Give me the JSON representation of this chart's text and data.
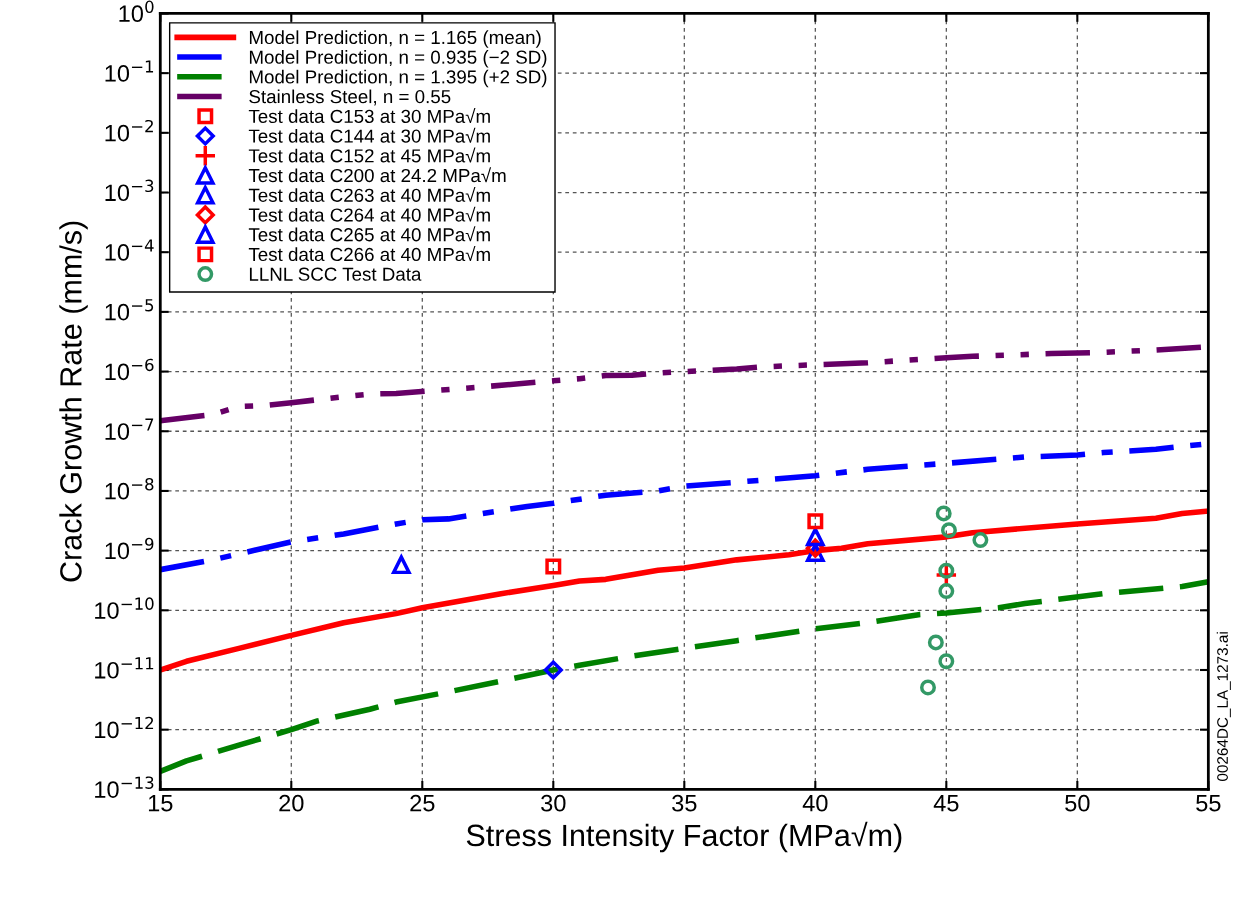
{
  "chart_data": {
    "type": "line",
    "xlabel": "Stress Intensity Factor (MPa√m)",
    "ylabel": "Crack Growth Rate (mm/s)",
    "log": "y",
    "grid": true,
    "legend": "top left",
    "xlim": [
      15,
      55
    ],
    "xticks": [
      15,
      20,
      25,
      30,
      35,
      40,
      45,
      50,
      55
    ],
    "ylim": [
      1e-13,
      1
    ],
    "yticks": [
      {
        "value": 1,
        "label": "10$^{0}$"
      },
      {
        "value": 0.1,
        "label": "10$^{−1}$"
      },
      {
        "value": 0.01,
        "label": "10$^{−2}$"
      },
      {
        "value": 0.001,
        "label": "10$^{−3}$"
      },
      {
        "value": 0.0001,
        "label": "10$^{−4}$"
      },
      {
        "value": 1e-05,
        "label": "10$^{−5}$"
      },
      {
        "value": 1e-06,
        "label": "10$^{−6}$"
      },
      {
        "value": 1e-07,
        "label": "10$^{−7}$"
      },
      {
        "value": 1e-08,
        "label": "10$^{−8}$"
      },
      {
        "value": 1e-09,
        "label": "10$^{−9}$"
      },
      {
        "value": 1e-10,
        "label": "10$^{−10}$"
      },
      {
        "value": 1e-11,
        "label": "10$^{−11}$"
      },
      {
        "value": 1e-12,
        "label": "10$^{−12}$"
      },
      {
        "value": 1e-13,
        "label": "10$^{−13}$"
      }
    ],
    "annotations": [
      "00264DC_LA_1273.ai"
    ],
    "series": [
      {
        "name": "Model Prediction, n = 1.165 (mean)",
        "line_style": "solid",
        "color": "#ff0000",
        "x": [
          15,
          16,
          18,
          20,
          22,
          24,
          25,
          28,
          30,
          31,
          32,
          34,
          35,
          37,
          39,
          40,
          41,
          42,
          45,
          46,
          50,
          53,
          54,
          55
        ],
        "values": [
          1e-11,
          1.4e-11,
          2.3e-11,
          3.8e-11,
          6.2e-11,
          8.8e-11,
          1.1e-10,
          1.9e-10,
          2.6e-10,
          3.1e-10,
          3.3e-10,
          4.7e-10,
          5.1e-10,
          7e-10,
          8.5e-10,
          1e-09,
          1.1e-09,
          1.3e-09,
          1.7e-09,
          2e-09,
          2.8e-09,
          3.5e-09,
          4.2e-09,
          4.6e-09
        ]
      },
      {
        "name": "Model Prediction, n = 0.935 (−2 SD)",
        "line_style": "dashdot",
        "color": "#0000ff",
        "x": [
          15,
          17,
          20,
          22,
          24,
          25,
          26,
          29,
          30,
          32,
          34,
          35,
          37,
          40,
          42,
          43,
          45,
          48,
          50,
          51,
          53,
          55
        ],
        "values": [
          4.8e-10,
          7e-10,
          1.4e-09,
          1.9e-09,
          2.8e-09,
          3.3e-09,
          3.4e-09,
          5.5e-09,
          6.2e-09,
          8.5e-09,
          1e-08,
          1.2e-08,
          1.4e-08,
          1.8e-08,
          2.3e-08,
          2.5e-08,
          2.9e-08,
          3.7e-08,
          4e-08,
          4.4e-08,
          5e-08,
          6.2e-08
        ]
      },
      {
        "name": "Model Prediction, n = 1.395 (+2 SD)",
        "line_style": "dashed",
        "color": "#008000",
        "x": [
          15,
          16,
          18,
          20,
          21,
          23,
          24,
          26,
          28,
          30,
          31,
          33,
          35,
          37,
          40,
          42,
          44,
          45,
          47,
          48,
          51,
          54,
          55
        ],
        "values": [
          2e-13,
          3e-13,
          5.5e-13,
          1e-12,
          1.4e-12,
          2.2e-12,
          2.9e-12,
          4.3e-12,
          6.5e-12,
          1e-11,
          1.2e-11,
          1.7e-11,
          2.3e-11,
          3.1e-11,
          4.9e-11,
          6.2e-11,
          8.5e-11,
          9e-11,
          1.1e-10,
          1.3e-10,
          1.9e-10,
          2.5e-10,
          3e-10
        ]
      },
      {
        "name": "Stainless Steel, n = 0.55",
        "line_style": "dashdotdot",
        "color": "#660066",
        "x": [
          15,
          17,
          18,
          19,
          20,
          22,
          23,
          24,
          27,
          30,
          31,
          32,
          33,
          34,
          35,
          37,
          38,
          40,
          42,
          43,
          45,
          46,
          49,
          51,
          52,
          53,
          55
        ],
        "values": [
          1.5e-07,
          1.9e-07,
          2.6e-07,
          2.7e-07,
          3e-07,
          3.8e-07,
          4.2e-07,
          4.3e-07,
          5.4e-07,
          7e-07,
          7.6e-07,
          8.6e-07,
          8.7e-07,
          9.5e-07,
          1e-06,
          1.1e-06,
          1.2e-06,
          1.3e-06,
          1.4e-06,
          1.5e-06,
          1.7e-06,
          1.8e-06,
          2e-06,
          2.1e-06,
          2.2e-06,
          2.3e-06,
          2.6e-06
        ]
      },
      {
        "name": "Test data C153 at 30 MPa√m",
        "type": "scatter",
        "marker": "square",
        "color": "#ff0000",
        "x": [
          30
        ],
        "values": [
          5.4e-10
        ]
      },
      {
        "name": "Test data C144 at 30 MPa√m",
        "type": "scatter",
        "marker": "diamond",
        "color": "#0000ff",
        "x": [
          30
        ],
        "values": [
          1e-11
        ]
      },
      {
        "name": "Test data C152 at 45 MPa√m",
        "type": "scatter",
        "marker": "cross",
        "color": "#ff0000",
        "x": [
          45
        ],
        "values": [
          3.9e-10
        ]
      },
      {
        "name": "Test data C200 at 24.2 MPa√m",
        "type": "scatter",
        "marker": "triangle",
        "color": "#0000ff",
        "x": [
          24.2
        ],
        "values": [
          5.8e-10
        ]
      },
      {
        "name": "Test data C263 at 40 MPa√m",
        "type": "scatter",
        "marker": "triangle",
        "color": "#0000ff",
        "x": [
          40
        ],
        "values": [
          9.3e-10
        ]
      },
      {
        "name": "Test data C264 at 40 MPa√m",
        "type": "scatter",
        "marker": "diamond",
        "color": "#ff0000",
        "x": [
          40
        ],
        "values": [
          1.1e-09
        ]
      },
      {
        "name": "Test data C265 at 40 MPa√m",
        "type": "scatter",
        "marker": "triangle",
        "color": "#0000ff",
        "x": [
          40
        ],
        "values": [
          1.7e-09
        ]
      },
      {
        "name": "Test data C266 at 40 MPa√m",
        "type": "scatter",
        "marker": "square",
        "color": "#ff0000",
        "x": [
          40
        ],
        "values": [
          3.1e-09
        ]
      },
      {
        "name": "LLNL SCC Test Data",
        "type": "scatter",
        "marker": "circle",
        "color": "#339966",
        "x": [
          44.9,
          45.1,
          46.3,
          45.0,
          45.0,
          44.6,
          45.0,
          44.3
        ],
        "values": [
          4.2e-09,
          2.2e-09,
          1.5e-09,
          4.6e-10,
          2.1e-10,
          2.9e-11,
          1.4e-11,
          5.1e-12
        ]
      }
    ]
  }
}
